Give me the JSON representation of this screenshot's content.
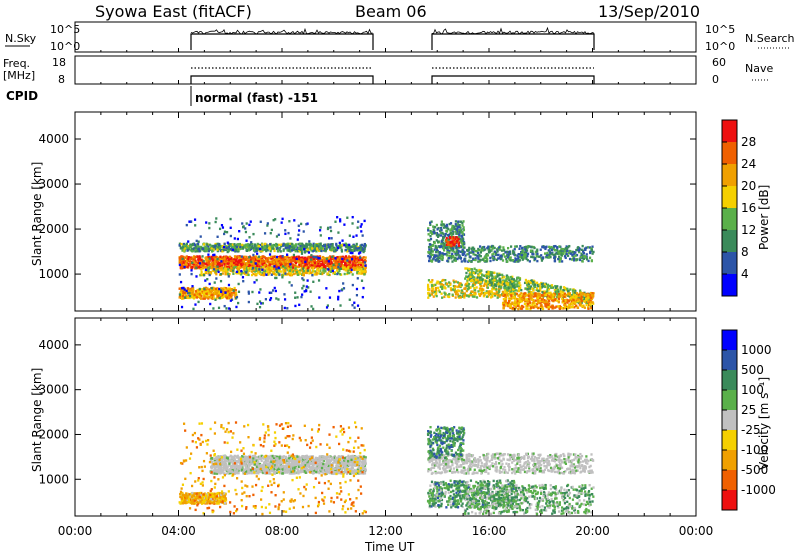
{
  "header": {
    "station_title": "Syowa East (fitACF)",
    "beam": "Beam 06",
    "date": "13/Sep/2010"
  },
  "nsky_panel": {
    "left_label": "N.Sky",
    "right_label": "N.Search",
    "left_ticks": [
      "10^5",
      "10^0"
    ],
    "right_ticks": [
      "10^5",
      "10^0"
    ]
  },
  "freq_panel": {
    "left_label_line1": "Freq.",
    "left_label_line2": "[MHz]",
    "right_label": "Nave",
    "left_ticks": [
      "18",
      "8"
    ],
    "right_ticks": [
      "60",
      "0"
    ]
  },
  "cpid": {
    "label": "CPID",
    "mode_text": "normal (fast) -151"
  },
  "colors": {
    "power_scale": [
      "#0000ff",
      "#2c55a8",
      "#3a8a5a",
      "#5ab04a",
      "#f5d000",
      "#f0a000",
      "#f06000",
      "#ee1010"
    ],
    "velocity_scale": [
      "#ee1010",
      "#f06000",
      "#f0a000",
      "#f5d000",
      "#c0c0c0",
      "#5ab04a",
      "#3a8a5a",
      "#2c55a8",
      "#0000ff"
    ],
    "ground_scatter": "#c0c0c0"
  },
  "chart_data": [
    {
      "type": "heatmap",
      "panel": "power",
      "ylabel": "Slant Range [km]",
      "ylim": [
        180,
        4600
      ],
      "yticks": [
        "1000",
        "2000",
        "3000",
        "4000"
      ],
      "xlim_hours": [
        0,
        24
      ],
      "colorbar_label": "Power [dB]",
      "colorbar_ticks": [
        "4",
        "8",
        "12",
        "16",
        "20",
        "24",
        "28"
      ],
      "data_intervals_hours": [
        [
          4.0,
          11.2
        ],
        [
          13.6,
          20.0
        ]
      ],
      "features": [
        {
          "start_h": 4.0,
          "end_h": 11.2,
          "range_km": [
            1100,
            1450
          ],
          "level_db": 22
        },
        {
          "start_h": 4.0,
          "end_h": 11.2,
          "range_km": [
            1550,
            1700
          ],
          "level_db": 12
        },
        {
          "start_h": 4.0,
          "end_h": 6.0,
          "range_km": [
            500,
            700
          ],
          "level_db": 20
        },
        {
          "start_h": 13.6,
          "end_h": 20.0,
          "range_km": [
            300,
            1500
          ],
          "level_db": 16
        }
      ]
    },
    {
      "type": "heatmap",
      "panel": "velocity",
      "ylabel": "Slant Range [km]",
      "ylim": [
        180,
        4600
      ],
      "yticks": [
        "1000",
        "2000",
        "3000",
        "4000"
      ],
      "xlim_hours": [
        0,
        24
      ],
      "xticks": [
        "00:00",
        "04:00",
        "08:00",
        "12:00",
        "16:00",
        "20:00",
        "00:00"
      ],
      "xlabel": "Time UT",
      "colorbar_label": "Velocity [m s⁻¹]",
      "colorbar_ticks": [
        "1000",
        "500",
        "100",
        "25",
        "-25",
        "-100",
        "-500",
        "-1000"
      ],
      "data_intervals_hours": [
        [
          4.0,
          11.2
        ],
        [
          13.6,
          20.0
        ]
      ]
    }
  ]
}
